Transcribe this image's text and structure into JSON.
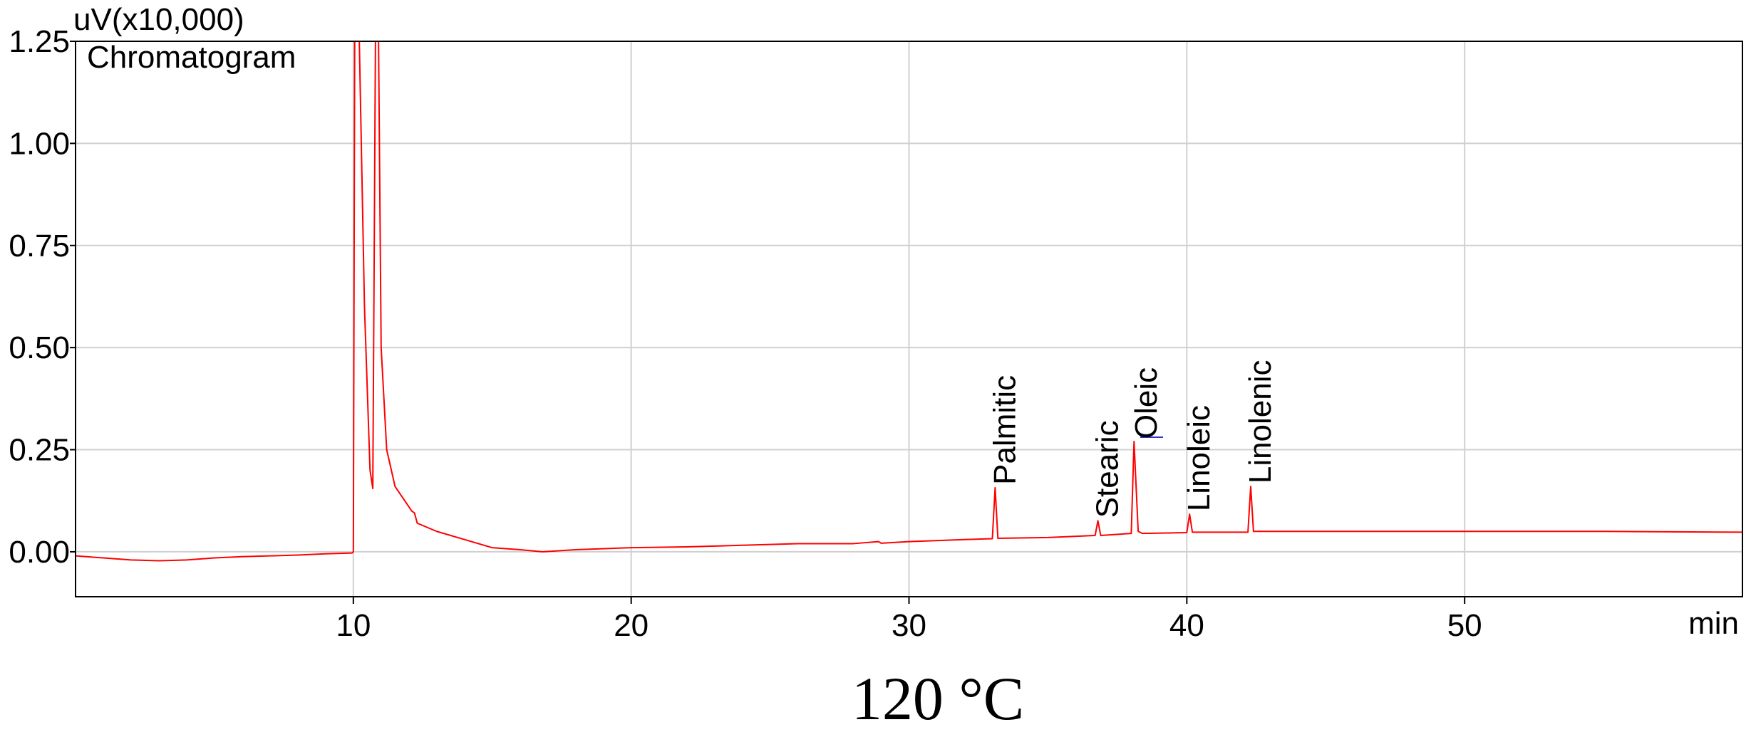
{
  "chart_data": {
    "type": "line",
    "title": "120 °C",
    "y_label": "uV(x10,000)",
    "x_label": "min",
    "grid": true,
    "xlim": [
      0,
      60
    ],
    "ylim": [
      -0.11,
      1.25
    ],
    "xticks": [
      10,
      20,
      30,
      40,
      50
    ],
    "yticks": [
      {
        "value": 0,
        "label": "0.00"
      },
      {
        "value": 0.25,
        "label": "0.25"
      },
      {
        "value": 0.5,
        "label": "0.50"
      },
      {
        "value": 0.75,
        "label": "0.75"
      },
      {
        "value": 1,
        "label": "1.00"
      },
      {
        "value": 1.25,
        "label": "1.25"
      }
    ],
    "x": [
      0,
      1,
      2,
      3,
      4,
      5,
      6,
      7,
      8,
      9,
      9.95,
      10.0,
      10.05,
      10.2,
      10.4,
      10.6,
      10.7,
      10.8,
      10.9,
      11.0,
      11.2,
      11.5,
      12.0,
      12.1,
      12.2,
      12.3,
      13,
      14,
      15,
      16,
      16.8,
      18,
      20,
      22,
      24,
      26,
      28,
      28.9,
      29,
      30,
      32,
      33.0,
      33.1,
      33.2,
      35,
      36.7,
      36.8,
      36.9,
      38.0,
      38.1,
      38.25,
      38.4,
      40.0,
      40.1,
      40.2,
      42.2,
      42.3,
      42.4,
      45,
      50,
      55,
      60
    ],
    "series": [
      {
        "name": "Chromatogram",
        "color": "#ff0000",
        "values": [
          -0.01,
          -0.015,
          -0.02,
          -0.022,
          -0.02,
          -0.015,
          -0.012,
          -0.01,
          -0.008,
          -0.005,
          -0.003,
          0.0,
          1.3,
          1.3,
          0.6,
          0.2,
          0.155,
          1.3,
          1.3,
          0.5,
          0.25,
          0.16,
          0.11,
          0.1,
          0.095,
          0.07,
          0.05,
          0.03,
          0.01,
          0.005,
          0.0,
          0.005,
          0.01,
          0.012,
          0.016,
          0.02,
          0.02,
          0.025,
          0.021,
          0.025,
          0.03,
          0.032,
          0.157,
          0.033,
          0.035,
          0.04,
          0.076,
          0.04,
          0.045,
          0.27,
          0.05,
          0.045,
          0.047,
          0.092,
          0.048,
          0.048,
          0.16,
          0.05,
          0.05,
          0.05,
          0.05,
          0.048
        ]
      }
    ],
    "annotations": [
      {
        "text": "Palmitic",
        "x": 33.1,
        "y": 0.157
      },
      {
        "text": "Stearic",
        "x": 36.8,
        "y": 0.076
      },
      {
        "text": "Oleic",
        "x": 38.2,
        "y": 0.27
      },
      {
        "text": "Linoleic",
        "x": 40.1,
        "y": 0.092
      },
      {
        "text": "Linolenic",
        "x": 42.3,
        "y": 0.16
      }
    ]
  }
}
